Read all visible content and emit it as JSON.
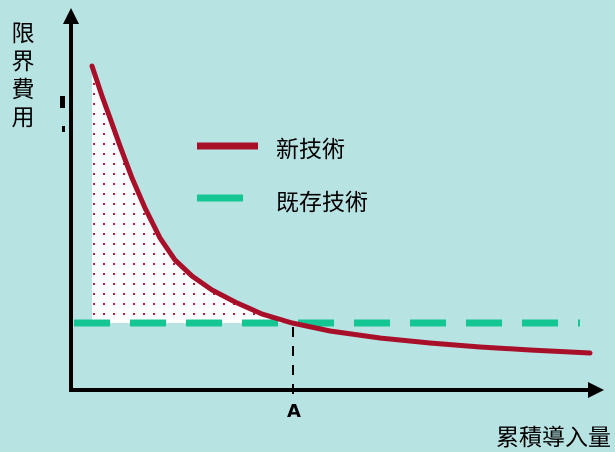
{
  "chart_data": {
    "type": "line",
    "ylabel": "限界費用",
    "xlabel": "累積導入量",
    "x_marker_label": "A",
    "series": [
      {
        "name": "新技術",
        "style": "solid",
        "color": "#a8102a",
        "description_shape": "decreasing convex cost curve"
      },
      {
        "name": "既存技術",
        "style": "dashed",
        "color": "#14c792",
        "description_shape": "flat horizontal line"
      }
    ],
    "shaded_region": {
      "fill": "dotted",
      "dot_color": "#c2183a",
      "background": "#ffffff"
    }
  }
}
